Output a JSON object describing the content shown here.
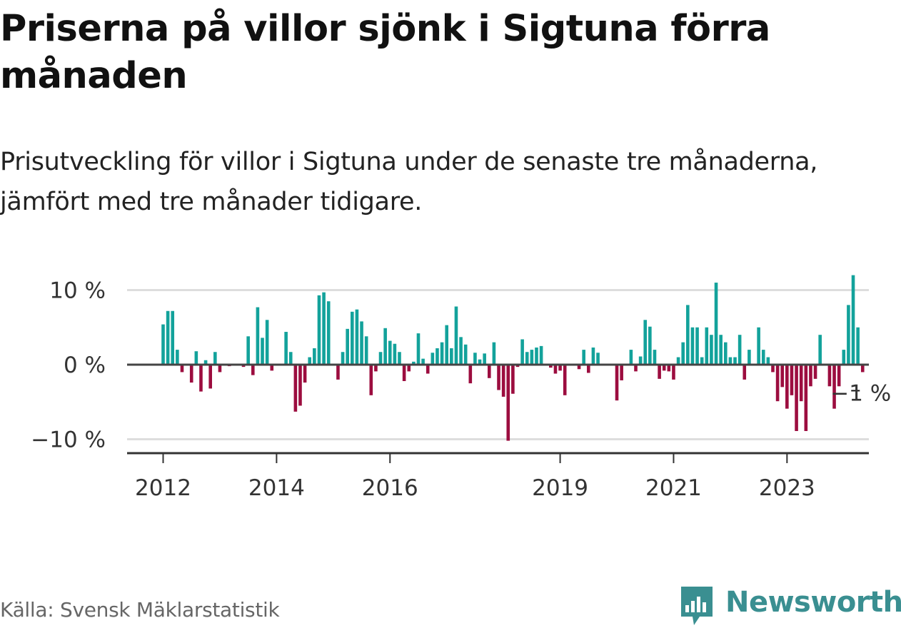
{
  "title": "Priserna på villor sjönk i Sigtuna förra månaden",
  "subtitle": "Prisutveckling för villor i Sigtuna under de senaste tre månaderna, jämfört med tre månader tidigare.",
  "source": "Källa: Svensk Mäklarstatistik",
  "brand": "Newsworthy",
  "colors": {
    "positive": "#13a29b",
    "negative": "#9c0d3f",
    "grid": "#dddddd",
    "axis": "#333333"
  },
  "chart_data": {
    "type": "bar",
    "title": "Priserna på villor sjönk i Sigtuna förra månaden",
    "xlabel": "",
    "ylabel": "",
    "ylim": [
      -11.5,
      12
    ],
    "start": {
      "year": 2012,
      "month": 1
    },
    "ytick_values": [
      10,
      0,
      -10
    ],
    "ytick_labels": [
      "10 %",
      "0 %",
      "−10 %"
    ],
    "xtick_values": [
      2012,
      2014,
      2016,
      2019,
      2021,
      2023
    ],
    "xtick_labels": [
      "2012",
      "2014",
      "2016",
      "2019",
      "2021",
      "2023"
    ],
    "annotation": {
      "label": "−1 %",
      "value": -1
    },
    "values": [
      5.4,
      7.2,
      7.2,
      2.0,
      -1.0,
      0.0,
      -2.4,
      1.8,
      -3.6,
      0.6,
      -3.2,
      1.7,
      -1.0,
      0.0,
      -0.2,
      0.0,
      0.0,
      -0.3,
      3.8,
      -1.4,
      7.7,
      3.6,
      6.0,
      -0.8,
      0.0,
      0.0,
      4.4,
      1.7,
      -6.3,
      -5.5,
      -2.4,
      1.0,
      2.2,
      9.3,
      9.7,
      8.5,
      0.0,
      -2.0,
      1.7,
      4.8,
      7.1,
      7.4,
      5.8,
      3.8,
      -4.1,
      -0.9,
      1.7,
      4.9,
      3.2,
      2.8,
      1.7,
      -2.2,
      -0.9,
      0.4,
      4.2,
      0.8,
      -1.2,
      1.6,
      2.2,
      3.0,
      5.3,
      2.2,
      7.8,
      3.7,
      2.7,
      -2.5,
      1.6,
      0.7,
      1.5,
      -1.8,
      3.0,
      -3.4,
      -4.3,
      -10.2,
      -3.9,
      -0.3,
      3.4,
      1.7,
      2.0,
      2.3,
      2.5,
      0.0,
      -0.4,
      -1.2,
      -0.8,
      -4.1,
      0.0,
      0.0,
      -0.6,
      2.0,
      -1.1,
      2.3,
      1.6,
      0.0,
      0.0,
      0.0,
      -4.8,
      -2.1,
      0.0,
      2.0,
      -0.9,
      1.1,
      6.0,
      5.1,
      2.0,
      -1.9,
      -0.8,
      -0.9,
      -2.0,
      1.0,
      3.0,
      8.0,
      5.0,
      5.0,
      1.0,
      5.0,
      4.0,
      11.0,
      4.0,
      3.0,
      1.0,
      1.0,
      4.0,
      -2.0,
      2.0,
      0.0,
      5.0,
      2.0,
      1.0,
      -1.0,
      -4.9,
      -3.0,
      -5.9,
      -4.1,
      -8.9,
      -4.9,
      -8.9,
      -2.9,
      -1.9,
      4.0,
      0.0,
      -2.9,
      -5.9,
      -2.9,
      2.0,
      8.0,
      12.0,
      5.0,
      -1.0
    ]
  }
}
